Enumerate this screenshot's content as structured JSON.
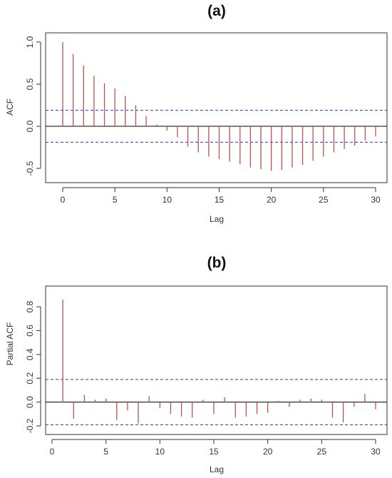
{
  "colors": {
    "bar": "#c0504d",
    "confidence": "#3333cc",
    "axis": "#333333",
    "frame": "#333333"
  },
  "chart_data": [
    {
      "type": "bar",
      "panel": "(a)",
      "title": "(a)",
      "xlabel": "Lag",
      "ylabel": "ACF",
      "xlim": [
        0,
        30
      ],
      "ylim": [
        -0.55,
        1.0
      ],
      "xticks": [
        "0",
        "5",
        "10",
        "15",
        "20",
        "25",
        "30"
      ],
      "yticks": [
        "-0.5",
        "0.0",
        "0.5",
        "1.0"
      ],
      "confidence_band": [
        0.19,
        -0.19
      ],
      "grid": false,
      "lags": [
        0,
        1,
        2,
        3,
        4,
        5,
        6,
        7,
        8,
        9,
        10,
        11,
        12,
        13,
        14,
        15,
        16,
        17,
        18,
        19,
        20,
        21,
        22,
        23,
        24,
        25,
        26,
        27,
        28,
        29,
        30
      ],
      "values": [
        1.0,
        0.86,
        0.72,
        0.6,
        0.51,
        0.45,
        0.36,
        0.25,
        0.12,
        0.02,
        -0.05,
        -0.13,
        -0.24,
        -0.31,
        -0.36,
        -0.39,
        -0.42,
        -0.45,
        -0.49,
        -0.51,
        -0.53,
        -0.52,
        -0.49,
        -0.46,
        -0.41,
        -0.36,
        -0.31,
        -0.27,
        -0.23,
        -0.17,
        -0.12
      ]
    },
    {
      "type": "bar",
      "panel": "(b)",
      "title": "(b)",
      "xlabel": "Lag",
      "ylabel": "Partial ACF",
      "xlim": [
        0,
        30
      ],
      "ylim": [
        -0.25,
        0.9
      ],
      "xticks": [
        "0",
        "5",
        "10",
        "15",
        "20",
        "25",
        "30"
      ],
      "yticks": [
        "-0.2",
        "0.0",
        "0.2",
        "0.4",
        "0.6",
        "0.8"
      ],
      "confidence_band": [
        0.19,
        -0.19
      ],
      "grid": false,
      "lags": [
        1,
        2,
        3,
        4,
        5,
        6,
        7,
        8,
        9,
        10,
        11,
        12,
        13,
        14,
        15,
        16,
        17,
        18,
        19,
        20,
        21,
        22,
        23,
        24,
        25,
        26,
        27,
        28,
        29,
        30
      ],
      "values": [
        0.86,
        -0.14,
        0.06,
        0.02,
        0.03,
        -0.15,
        -0.07,
        -0.18,
        0.05,
        -0.05,
        -0.1,
        -0.12,
        -0.13,
        0.02,
        -0.1,
        0.04,
        -0.13,
        -0.12,
        -0.1,
        -0.09,
        0.01,
        -0.04,
        0.02,
        0.03,
        0.02,
        -0.13,
        -0.17,
        -0.04,
        0.07,
        -0.06
      ]
    }
  ]
}
